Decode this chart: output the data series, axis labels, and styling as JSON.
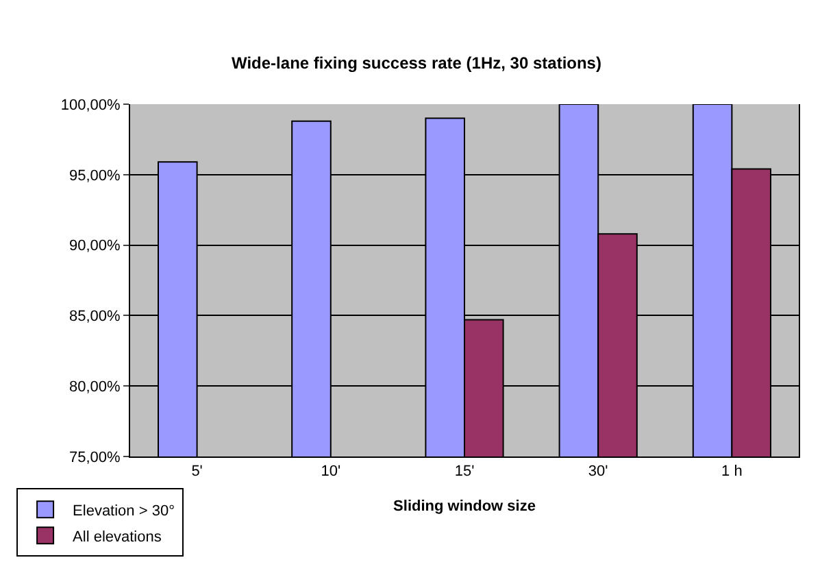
{
  "chart_data": {
    "type": "bar",
    "title": "Wide-lane fixing success rate (1Hz, 30 stations)",
    "xlabel": "Sliding window size",
    "categories": [
      "5'",
      "10'",
      "15'",
      "30'",
      "1 h"
    ],
    "series": [
      {
        "name": "Elevation > 30°",
        "color": "#9999ff",
        "values": [
          95.9,
          98.8,
          99.0,
          100.0,
          100.0
        ]
      },
      {
        "name": "All elevations",
        "color": "#993366",
        "values": [
          null,
          null,
          84.7,
          90.8,
          95.4
        ]
      }
    ],
    "ylim": [
      75,
      100
    ],
    "yticks": [
      {
        "value": 75,
        "label": "75,00%"
      },
      {
        "value": 80,
        "label": "80,00%"
      },
      {
        "value": 85,
        "label": "85,00%"
      },
      {
        "value": 90,
        "label": "90,00%"
      },
      {
        "value": 95,
        "label": "95,00%"
      },
      {
        "value": 100,
        "label": "100,00%"
      }
    ],
    "grid": "y",
    "legend": "bottom left"
  }
}
